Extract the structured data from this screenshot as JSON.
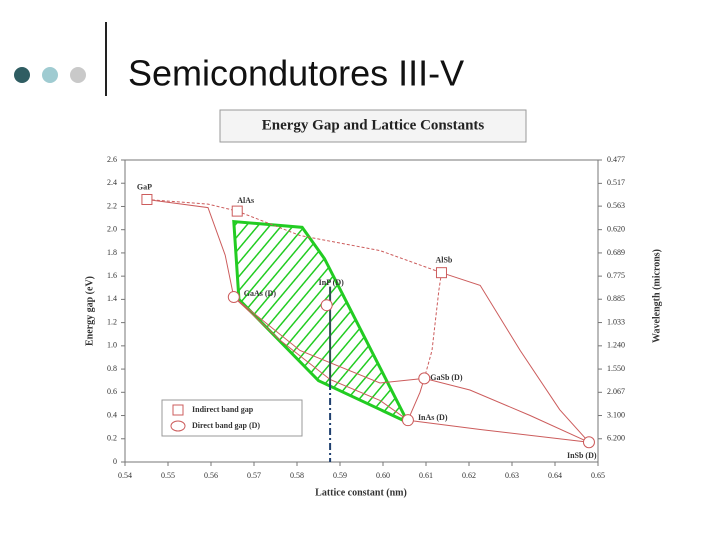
{
  "slide": {
    "title": "Semicondutores III-V"
  },
  "chart_data": {
    "type": "scatter",
    "title": "Energy Gap and Lattice Constants",
    "x_label": "Lattice constant (nm)",
    "y_label": "Energy gap (eV)",
    "y2_label": "Wavelength (microns)",
    "xlim": [
      0.54,
      0.65
    ],
    "xticks": [
      0.54,
      0.55,
      0.56,
      0.57,
      0.58,
      0.59,
      {
        "value": 0.6,
        "label": "0.60"
      },
      0.61,
      0.62,
      0.63,
      0.64,
      0.65
    ],
    "ylim": [
      0,
      2.6
    ],
    "yticks": [
      0,
      0.2,
      0.4,
      0.6,
      0.8,
      {
        "value": 1,
        "label": "1.0"
      },
      1.2,
      1.4,
      1.6,
      1.8,
      {
        "value": 2,
        "label": "2.0"
      },
      2.2,
      2.4,
      2.6
    ],
    "y2scale": "reciprocal",
    "y2lim": [
      null,
      0.477
    ],
    "y2ticks": [
      0.477,
      0.517,
      0.563,
      {
        "value": 0.62,
        "label": "0.620"
      },
      0.689,
      0.775,
      0.885,
      1.033,
      {
        "value": 1.24,
        "label": "1.240"
      },
      {
        "value": 1.55,
        "label": "1.550"
      },
      2.067,
      {
        "value": 3.1,
        "label": "3.100"
      },
      {
        "value": 6.2,
        "label": "6.200"
      }
    ],
    "legend": "lower left",
    "series": [
      {
        "name": "Indirect band gap",
        "marker": "square",
        "color": "#cc5c5c",
        "x": [
          0.5451,
          0.5661,
          0.6136
        ],
        "y": [
          2.26,
          2.16,
          1.63
        ],
        "labels": [
          "GaP",
          "AlAs",
          "AlSb"
        ]
      },
      {
        "name": "Direct band gap (D)",
        "marker": "circle",
        "color": "#cc5c5c",
        "x": [
          0.5653,
          0.5869,
          0.6096,
          0.6058,
          0.6479
        ],
        "y": [
          1.42,
          1.35,
          0.72,
          0.36,
          0.17
        ],
        "labels": [
          "GaAs (D)",
          "InP (D)",
          "GaSb (D)",
          "InAs (D)",
          "InSb (D)"
        ]
      }
    ],
    "curves": [
      {
        "dash": true,
        "color": "#cc5c5c",
        "x": [
          0.5451,
          0.5593,
          0.5661
        ],
        "y": [
          2.26,
          2.22,
          2.16
        ]
      },
      {
        "dash": false,
        "color": "#cc5c5c",
        "x": [
          0.5451,
          0.5593,
          0.5633,
          0.5653
        ],
        "y": [
          2.26,
          2.19,
          1.78,
          1.42
        ]
      },
      {
        "dash": true,
        "color": "#cc5c5c",
        "x": [
          0.5661,
          0.5807,
          0.5993,
          0.6136
        ],
        "y": [
          2.16,
          1.95,
          1.82,
          1.63
        ]
      },
      {
        "dash": false,
        "color": "#cc5c5c",
        "x": [
          0.6136,
          0.6226,
          0.6319,
          0.6411,
          0.6479
        ],
        "y": [
          1.63,
          1.52,
          0.96,
          0.45,
          0.17
        ]
      },
      {
        "dash": true,
        "color": "#cc5c5c",
        "x": [
          0.6136,
          0.613,
          0.6114,
          0.6096
        ],
        "y": [
          1.63,
          1.48,
          0.96,
          0.72
        ]
      },
      {
        "dash": false,
        "color": "#cc5c5c",
        "x": [
          0.6096,
          0.6202,
          0.6342,
          0.6479
        ],
        "y": [
          0.72,
          0.62,
          0.4,
          0.17
        ]
      },
      {
        "dash": false,
        "color": "#cc5c5c",
        "x": [
          0.5653,
          0.576,
          0.5877,
          0.5993,
          0.6058
        ],
        "y": [
          1.42,
          1.05,
          0.71,
          0.53,
          0.36
        ]
      },
      {
        "dash": false,
        "color": "#cc5c5c",
        "x": [
          0.5653,
          0.5807,
          0.5993,
          0.6096
        ],
        "y": [
          1.42,
          0.96,
          0.68,
          0.72
        ]
      },
      {
        "dash": false,
        "color": "#cc5c5c",
        "x": [
          0.6058,
          0.6226,
          0.6479
        ],
        "y": [
          0.36,
          0.28,
          0.17
        ]
      },
      {
        "dash": false,
        "color": "#cc5c5c",
        "x": [
          0.6058,
          0.6086,
          0.6096
        ],
        "y": [
          0.36,
          0.6,
          0.72
        ]
      }
    ],
    "region": {
      "color": "#22cc22",
      "x": [
        0.5653,
        0.5812,
        0.5864,
        0.6058,
        0.585,
        0.5665
      ],
      "y": [
        2.07,
        2.02,
        1.75,
        0.34,
        0.7,
        1.4
      ]
    },
    "marker_lines": [
      {
        "style": "solid",
        "color": "#2f4f4f",
        "x": [
          0.5877,
          0.5877
        ],
        "y": [
          1.51,
          0.68
        ]
      },
      {
        "style": "dashdot",
        "color": "#1f3f6f",
        "x": [
          0.5877,
          0.5877
        ],
        "y": [
          0.68,
          0
        ]
      }
    ]
  }
}
